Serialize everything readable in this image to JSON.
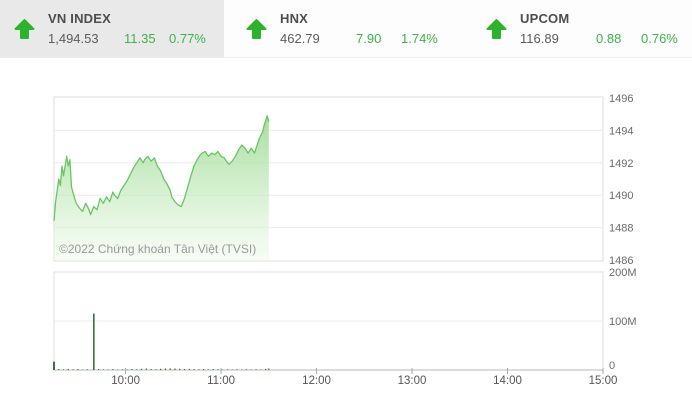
{
  "header": {
    "indices": [
      {
        "name": "VN INDEX",
        "value": "1,494.53",
        "change": "11.35",
        "change_pct": "0.77%",
        "direction": "up",
        "selected": true
      },
      {
        "name": "HNX",
        "value": "462.79",
        "change": "7.90",
        "change_pct": "1.74%",
        "direction": "up",
        "selected": false
      },
      {
        "name": "UPCOM",
        "value": "116.89",
        "change": "0.88",
        "change_pct": "0.76%",
        "direction": "up",
        "selected": false
      }
    ]
  },
  "watermark": "©2022 Chứng khoán Tân Việt (TVSI)",
  "colors": {
    "up_green": "#2db22d",
    "up_text_green": "#3eb24a",
    "selected_tile_bg": "#e9e9e9",
    "grid": "#ececec",
    "pane_border": "#dedede",
    "axis_line": "#b9b9b9",
    "axis_text": "#6a6a6a",
    "xaxis_text": "#555555"
  },
  "chart_data": [
    {
      "type": "area",
      "name": "vnindex-intraday",
      "title": "VN INDEX intraday",
      "x": [
        "09:15",
        "09:16",
        "09:18",
        "09:19",
        "09:20",
        "09:21",
        "09:23",
        "09:24",
        "09:25",
        "09:26",
        "09:28",
        "09:29",
        "09:31",
        "09:33",
        "09:35",
        "09:37",
        "09:38",
        "09:40",
        "09:42",
        "09:44",
        "09:46",
        "09:48",
        "09:50",
        "09:52",
        "09:53",
        "09:55",
        "09:57",
        "09:59",
        "10:01",
        "10:03",
        "10:05",
        "10:07",
        "10:09",
        "10:11",
        "10:12",
        "10:14",
        "10:16",
        "10:18",
        "10:20",
        "10:22",
        "10:24",
        "10:26",
        "10:28",
        "10:29",
        "10:31",
        "10:33",
        "10:35",
        "10:37",
        "10:39",
        "10:41",
        "10:43",
        "10:45",
        "10:47",
        "10:48",
        "10:50",
        "10:52",
        "10:54",
        "10:56",
        "10:58",
        "11:00",
        "11:02",
        "11:04",
        "11:05",
        "11:07",
        "11:09",
        "11:11",
        "11:13",
        "11:15",
        "11:17",
        "11:19",
        "11:21",
        "11:23",
        "11:24",
        "11:26",
        "11:27",
        "11:29",
        "11:30"
      ],
      "values": [
        1488.4,
        1489.6,
        1491.0,
        1490.6,
        1491.8,
        1491.2,
        1492.4,
        1491.8,
        1492.2,
        1490.5,
        1489.8,
        1489.5,
        1489.2,
        1489.0,
        1489.5,
        1489.1,
        1488.8,
        1489.3,
        1489.1,
        1489.8,
        1489.5,
        1489.9,
        1489.6,
        1490.2,
        1490.0,
        1489.8,
        1490.3,
        1490.6,
        1490.9,
        1491.3,
        1491.7,
        1492.0,
        1492.3,
        1492.0,
        1492.2,
        1492.4,
        1492.1,
        1492.3,
        1491.8,
        1491.5,
        1491.0,
        1490.7,
        1490.3,
        1489.9,
        1489.6,
        1489.4,
        1489.3,
        1489.8,
        1490.5,
        1491.2,
        1491.8,
        1492.2,
        1492.5,
        1492.6,
        1492.7,
        1492.4,
        1492.6,
        1492.5,
        1492.7,
        1492.4,
        1492.3,
        1492.0,
        1491.9,
        1492.1,
        1492.4,
        1492.8,
        1493.1,
        1492.9,
        1492.6,
        1492.9,
        1492.6,
        1493.2,
        1493.5,
        1493.9,
        1494.3,
        1494.9,
        1494.53
      ],
      "yticks": [
        1496,
        1494,
        1492,
        1490,
        1488,
        1486
      ],
      "ylim": [
        1486,
        1496
      ],
      "xticks": [
        "10:00",
        "11:00",
        "12:00",
        "13:00",
        "14:00",
        "15:00"
      ],
      "xlim": [
        "09:15",
        "15:00"
      ],
      "grid": true,
      "legend": "none",
      "line_color": "#69c563",
      "fill_top": "#8fd684",
      "fill_bottom": "#f0faec"
    },
    {
      "type": "bar",
      "name": "volume",
      "title": "Volume",
      "x": [
        "09:15",
        "09:18",
        "09:21",
        "09:24",
        "09:27",
        "09:30",
        "09:33",
        "09:36",
        "09:40",
        "09:43",
        "09:46",
        "09:49",
        "09:52",
        "09:55",
        "09:58",
        "10:01",
        "10:04",
        "10:07",
        "10:10",
        "10:13",
        "10:16",
        "10:19",
        "10:22",
        "10:25",
        "10:28",
        "10:31",
        "10:34",
        "10:37",
        "10:40",
        "10:43",
        "10:46",
        "10:49",
        "10:52",
        "10:55",
        "10:58",
        "11:01",
        "11:04",
        "11:07",
        "11:10",
        "11:13",
        "11:16",
        "11:19",
        "11:22",
        "11:25",
        "11:28",
        "11:30"
      ],
      "values_millions": [
        17,
        2,
        1.5,
        2,
        1.5,
        2,
        1,
        1.5,
        115,
        2,
        1.5,
        1,
        2,
        1,
        1.5,
        1,
        2,
        1.5,
        2.5,
        3,
        2,
        1.5,
        2.5,
        3,
        3.5,
        3,
        2.5,
        2,
        2.5,
        2,
        1.5,
        2,
        1.5,
        2,
        1.5,
        1,
        1.5,
        1,
        1.5,
        1,
        1.5,
        1,
        1.5,
        1,
        2,
        3
      ],
      "yticks_labels": [
        "200M",
        "100M",
        "0"
      ],
      "yticks_values": [
        200,
        100,
        0
      ],
      "ylim": [
        0,
        200
      ],
      "bar_color": "#2f7a33"
    }
  ]
}
